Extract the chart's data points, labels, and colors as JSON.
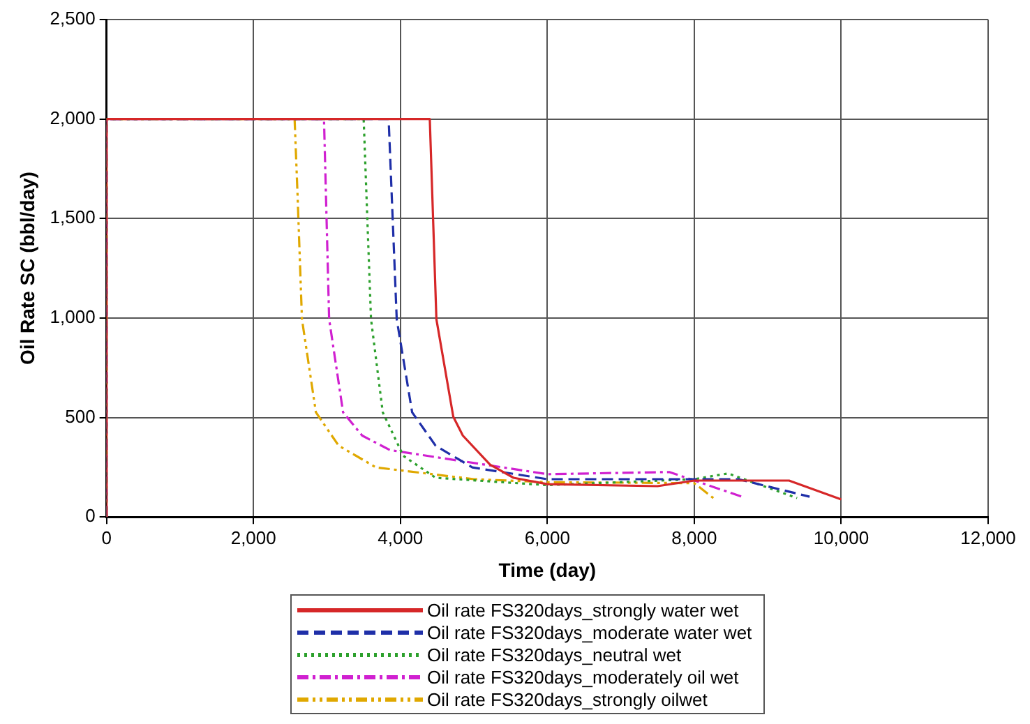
{
  "chart_data": {
    "type": "line",
    "xlabel": "Time (day)",
    "ylabel": "Oil Rate SC (bbl/day)",
    "xlim": [
      0,
      12000
    ],
    "xticks": [
      0,
      {
        "value": 2000,
        "label": "2,000"
      },
      {
        "value": 4000,
        "label": "4,000"
      },
      {
        "value": 6000,
        "label": "6,000"
      },
      {
        "value": 8000,
        "label": "8,000"
      },
      {
        "value": 10000,
        "label": "10,000"
      },
      {
        "value": 12000,
        "label": "12,000"
      }
    ],
    "ylim": [
      0,
      2500
    ],
    "yticks": [
      0,
      500,
      {
        "value": 1000,
        "label": "1,000"
      },
      {
        "value": 1500,
        "label": "1,500"
      },
      {
        "value": 2000,
        "label": "2,000"
      },
      {
        "value": 2500,
        "label": "2,500"
      }
    ],
    "grid": true,
    "legend": "bottom",
    "marker": "none",
    "series": [
      {
        "name": "Oil rate FS320days_strongly water wet",
        "color": "#d62728",
        "line_style": "solid",
        "x": [
          0,
          0,
          4400,
          4490,
          4720,
          4850,
          5220,
          5540,
          6000,
          7500,
          8000,
          9290,
          10000
        ],
        "values": [
          0,
          2000,
          2000,
          994,
          504,
          409,
          263,
          197,
          165,
          155,
          183,
          183,
          88
        ]
      },
      {
        "name": "Oil rate FS320days_moderate water wet",
        "color": "#1f2fa8",
        "line_style": "dashed",
        "x": [
          0,
          0,
          3840,
          3950,
          4160,
          4480,
          4980,
          6000,
          8000,
          8600,
          9570
        ],
        "values": [
          0,
          2000,
          2000,
          994,
          526,
          358,
          249,
          190,
          190,
          190,
          102
        ]
      },
      {
        "name": "Oil rate FS320days_neutral wet",
        "color": "#2ca02c",
        "line_style": "dotted",
        "x": [
          0,
          0,
          3500,
          3600,
          3760,
          4040,
          4480,
          6000,
          8000,
          8460,
          9400
        ],
        "values": [
          0,
          2000,
          2000,
          994,
          526,
          307,
          197,
          160,
          190,
          219,
          95
        ]
      },
      {
        "name": "Oil rate FS320days_moderately oil wet",
        "color": "#d020d0",
        "line_style": "dashdot",
        "x": [
          0,
          0,
          2960,
          3030,
          3220,
          3480,
          3860,
          6000,
          7660,
          8650
        ],
        "values": [
          0,
          2000,
          2000,
          994,
          526,
          409,
          336,
          215,
          226,
          102
        ]
      },
      {
        "name": "Oil rate FS320days_strongly oilwet",
        "color": "#e0a800",
        "line_style": "dashdotdot",
        "x": [
          0,
          0,
          2560,
          2600,
          2660,
          2850,
          3160,
          3670,
          5000,
          6000,
          8000,
          8260
        ],
        "values": [
          0,
          2000,
          2000,
          1620,
          994,
          526,
          358,
          249,
          190,
          175,
          170,
          95
        ]
      }
    ]
  }
}
